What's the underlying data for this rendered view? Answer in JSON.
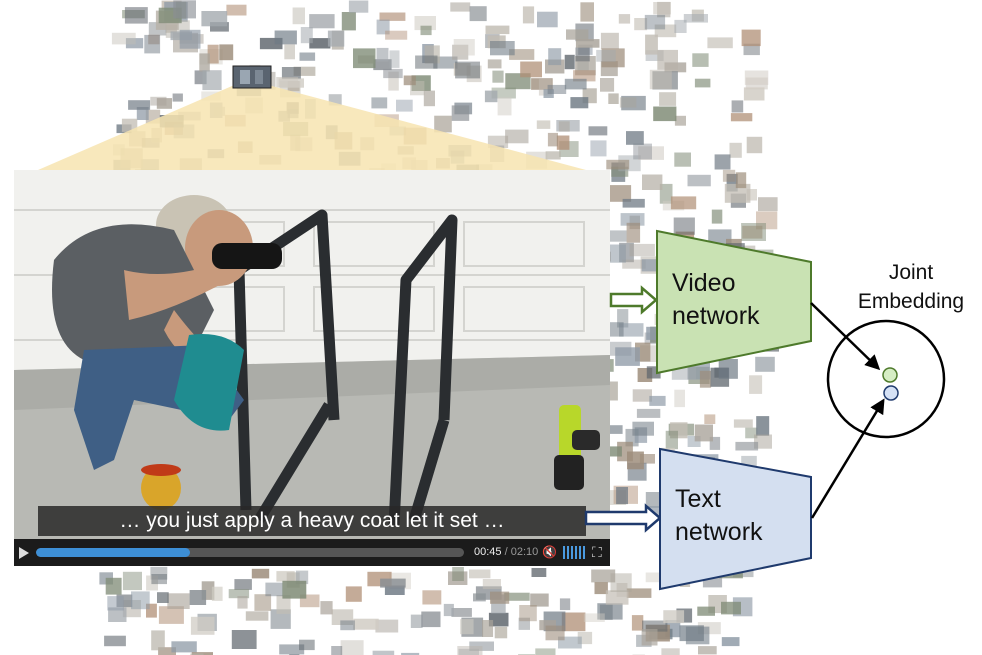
{
  "video_player": {
    "caption": "… you just apply a heavy coat let it set …",
    "time_current": "00:45",
    "time_separator": "/",
    "time_total": "02:10",
    "progress": 0.36,
    "play_icon": "play-icon",
    "volume_icon": "mute-icon",
    "fullscreen_icon": "fullscreen-icon"
  },
  "diagram": {
    "video_network": [
      "Video",
      "network"
    ],
    "text_network": [
      "Text",
      "network"
    ],
    "joint_embedding": [
      "Joint",
      "Embedding"
    ]
  },
  "colors": {
    "video_network_fill": "#c9e2b3",
    "video_network_stroke": "#4e7a2b",
    "text_network_fill": "#d4dff0",
    "text_network_stroke": "#1f3a6d",
    "zoom_wedge": "#f7e4b0",
    "progress_fill": "#3d8fd6",
    "green_embedding_point": "#d6edc4",
    "blue_embedding_point": "#d5e1f5"
  }
}
